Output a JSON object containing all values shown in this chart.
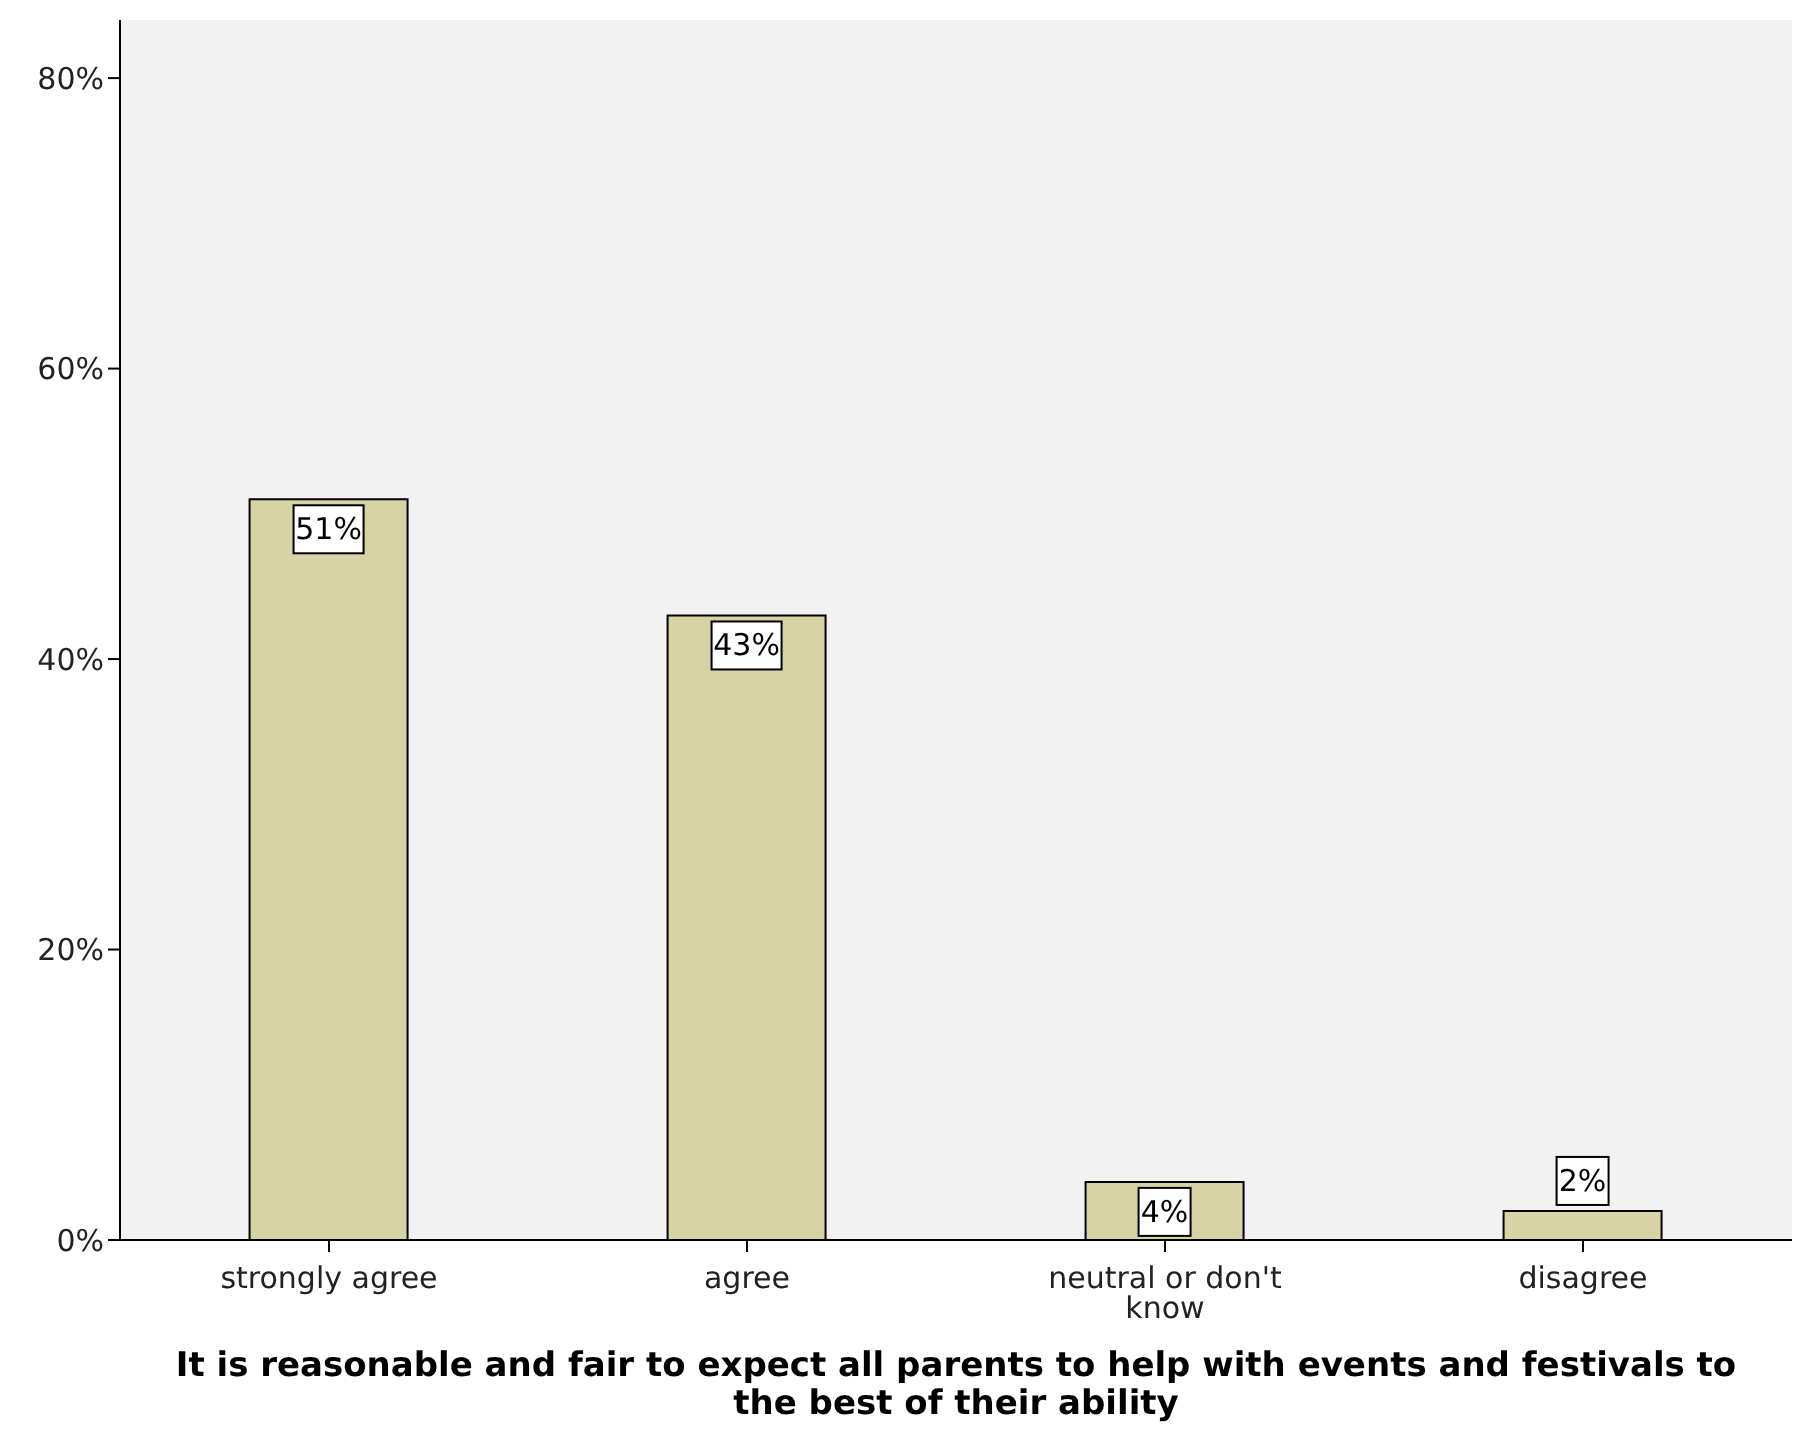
{
  "chart_data": {
    "type": "bar",
    "categories": [
      "strongly agree",
      "agree",
      "neutral or don't know",
      "disagree"
    ],
    "values": [
      51,
      43,
      4,
      2
    ],
    "value_labels": [
      "51%",
      "43%",
      "4%",
      "2%"
    ],
    "color": "#d8d3a5",
    "xlabel": "It is reasonable and fair to expect all parents to help with events and festivals to the best of their ability",
    "ylim": [
      0,
      84
    ],
    "yticks": [
      {
        "value": 0,
        "label": "0%"
      },
      {
        "value": 20,
        "label": "20%"
      },
      {
        "value": 40,
        "label": "40%"
      },
      {
        "value": 60,
        "label": "60%"
      },
      {
        "value": 80,
        "label": "80%"
      }
    ],
    "grid": false,
    "legend": false
  }
}
